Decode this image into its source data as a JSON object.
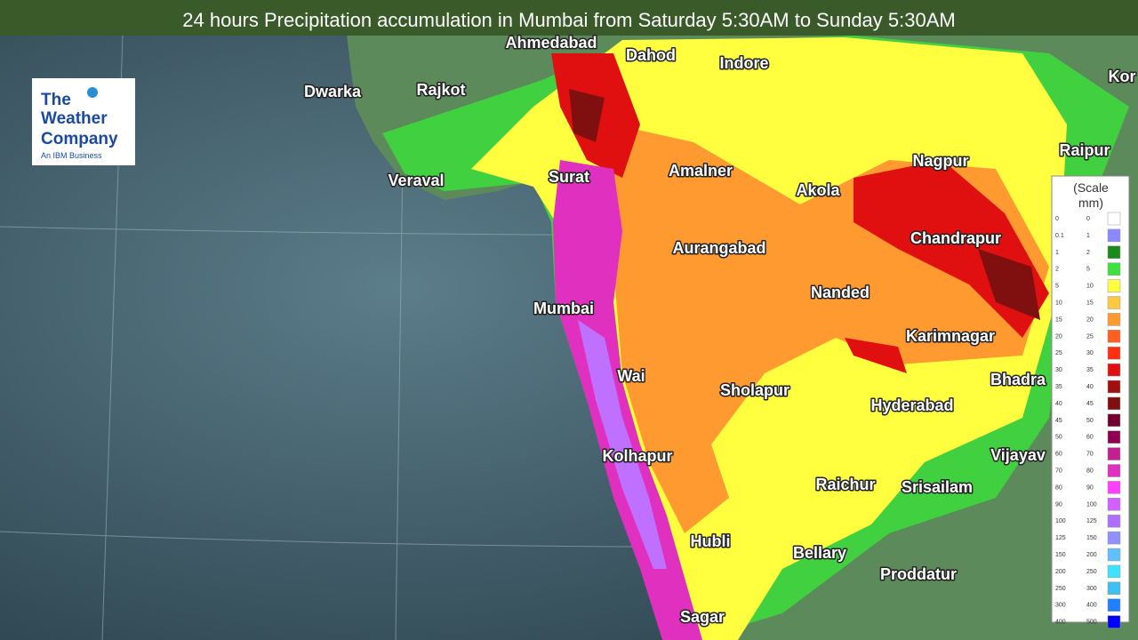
{
  "title": "24 hours Precipitation accumulation in Mumbai from Saturday 5:30AM to Sunday 5:30AM",
  "logo": {
    "lines": [
      "The",
      "Weather",
      "Company"
    ],
    "tagline": "An IBM Business"
  },
  "cities": [
    "Ahmedabad",
    "Dahod",
    "Indore",
    "Dwarka",
    "Rajkot",
    "Kor",
    "Raipur",
    "Surat",
    "Veraval",
    "Amalner",
    "Nagpur",
    "Akola",
    "Chandrapur",
    "Aurangabad",
    "Nanded",
    "Mumbai",
    "Karimnagar",
    "Wai",
    "Sholapur",
    "Bhadra",
    "Hyderabad",
    "Vijayav",
    "Kolhapur",
    "Raichur",
    "Srisailam",
    "Hubli",
    "Bellary",
    "Proddatur",
    "Sagar"
  ],
  "legend": {
    "heading": [
      "(Scale",
      "mm)"
    ],
    "rows": [
      {
        "low": 0,
        "high": 0,
        "color": "#ffffff"
      },
      {
        "low": 0.1,
        "high": 1,
        "color": "#8a8aff"
      },
      {
        "low": 1,
        "high": 2,
        "color": "#1a8a1a"
      },
      {
        "low": 2,
        "high": 5,
        "color": "#40e040"
      },
      {
        "low": 5,
        "high": 10,
        "color": "#ffff40"
      },
      {
        "low": 10,
        "high": 15,
        "color": "#ffc840"
      },
      {
        "low": 15,
        "high": 20,
        "color": "#ff9a30"
      },
      {
        "low": 20,
        "high": 25,
        "color": "#ff6020"
      },
      {
        "low": 25,
        "high": 30,
        "color": "#ff3010"
      },
      {
        "low": 30,
        "high": 35,
        "color": "#e01010"
      },
      {
        "low": 35,
        "high": 40,
        "color": "#a01010"
      },
      {
        "low": 40,
        "high": 45,
        "color": "#801010"
      },
      {
        "low": 45,
        "high": 50,
        "color": "#700030"
      },
      {
        "low": 50,
        "high": 60,
        "color": "#900050"
      },
      {
        "low": 60,
        "high": 70,
        "color": "#c02090"
      },
      {
        "low": 70,
        "high": 80,
        "color": "#e030c0"
      },
      {
        "low": 80,
        "high": 90,
        "color": "#ff40ff"
      },
      {
        "low": 90,
        "high": 100,
        "color": "#d060ff"
      },
      {
        "low": 100,
        "high": 125,
        "color": "#b070ff"
      },
      {
        "low": 125,
        "high": 150,
        "color": "#9090ff"
      },
      {
        "low": 150,
        "high": 200,
        "color": "#60c0ff"
      },
      {
        "low": 200,
        "high": 250,
        "color": "#40e0ff"
      },
      {
        "low": 250,
        "high": 300,
        "color": "#40c0f0"
      },
      {
        "low": 300,
        "high": 400,
        "color": "#2080ff"
      },
      {
        "low": 400,
        "high": 500,
        "color": "#0000ff"
      }
    ]
  }
}
